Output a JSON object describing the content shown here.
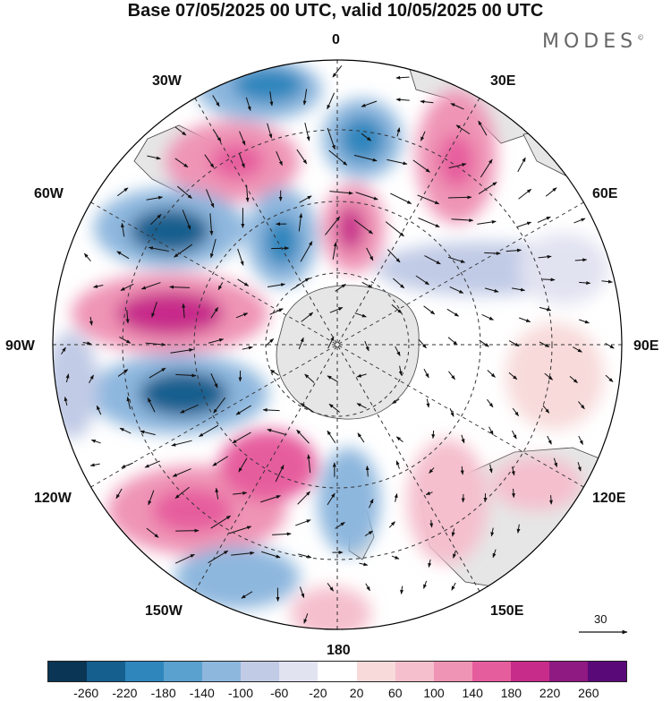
{
  "title": "Base 07/05/2025 00 UTC, valid 10/05/2025 00 UTC",
  "brand": "MODES",
  "brand_mark": "©",
  "longitude_labels": {
    "l0": "0",
    "l30e": "30E",
    "l60e": "60E",
    "l90e": "90E",
    "l120e": "120E",
    "l150e": "150E",
    "l180": "180",
    "l150w": "150W",
    "l120w": "120W",
    "l90w": "90W",
    "l60w": "60W",
    "l30w": "30W"
  },
  "reference_vector": "30",
  "colorbar": {
    "colors": [
      "#0b3554",
      "#155f8e",
      "#2f86bd",
      "#5ba1cf",
      "#8eb7de",
      "#c1cbe6",
      "#e2e3f1",
      "#ffffff",
      "#f8dada",
      "#f5bfcd",
      "#ef94b5",
      "#e65d9e",
      "#c72c8a",
      "#8f1a82",
      "#5a0a78"
    ],
    "ticks": [
      "-260",
      "-220",
      "-180",
      "-140",
      "-100",
      "-60",
      "-20",
      "20",
      "60",
      "100",
      "140",
      "180",
      "220",
      "260"
    ]
  },
  "colors": {
    "land": "#e6e6e6",
    "coast": "#444444",
    "frame": "#000000"
  }
}
